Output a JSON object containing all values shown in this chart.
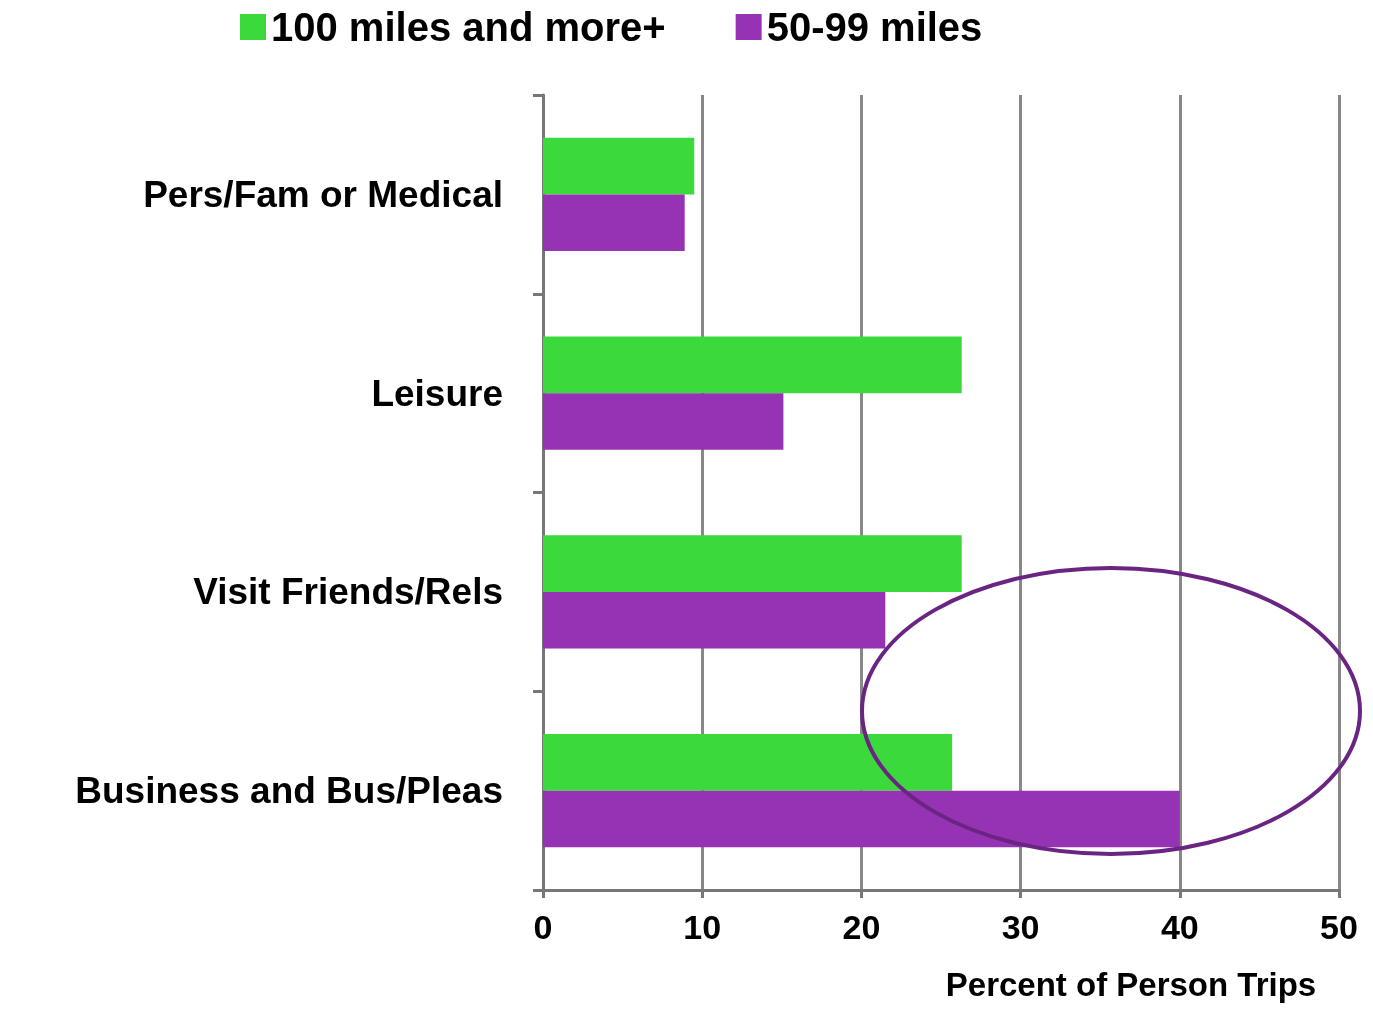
{
  "chart_data": {
    "type": "bar",
    "orientation": "horizontal",
    "xlabel": "Percent of Person Trips",
    "categories": [
      "Pers/Fam or Medical",
      "Leisure",
      "Visit Friends/Rels",
      "Business and Bus/Pleas"
    ],
    "series": [
      {
        "name": "100 miles and more+",
        "color": "#3bd93b",
        "values": [
          9.5,
          26.3,
          26.3,
          25.7
        ]
      },
      {
        "name": "50-99 miles",
        "color": "#9632b4",
        "values": [
          8.9,
          15.1,
          21.5,
          40
        ]
      }
    ],
    "xlim": [
      0,
      50
    ],
    "xticks": [
      0,
      10,
      20,
      30,
      40,
      50
    ],
    "grid": "x",
    "legend": "top"
  }
}
